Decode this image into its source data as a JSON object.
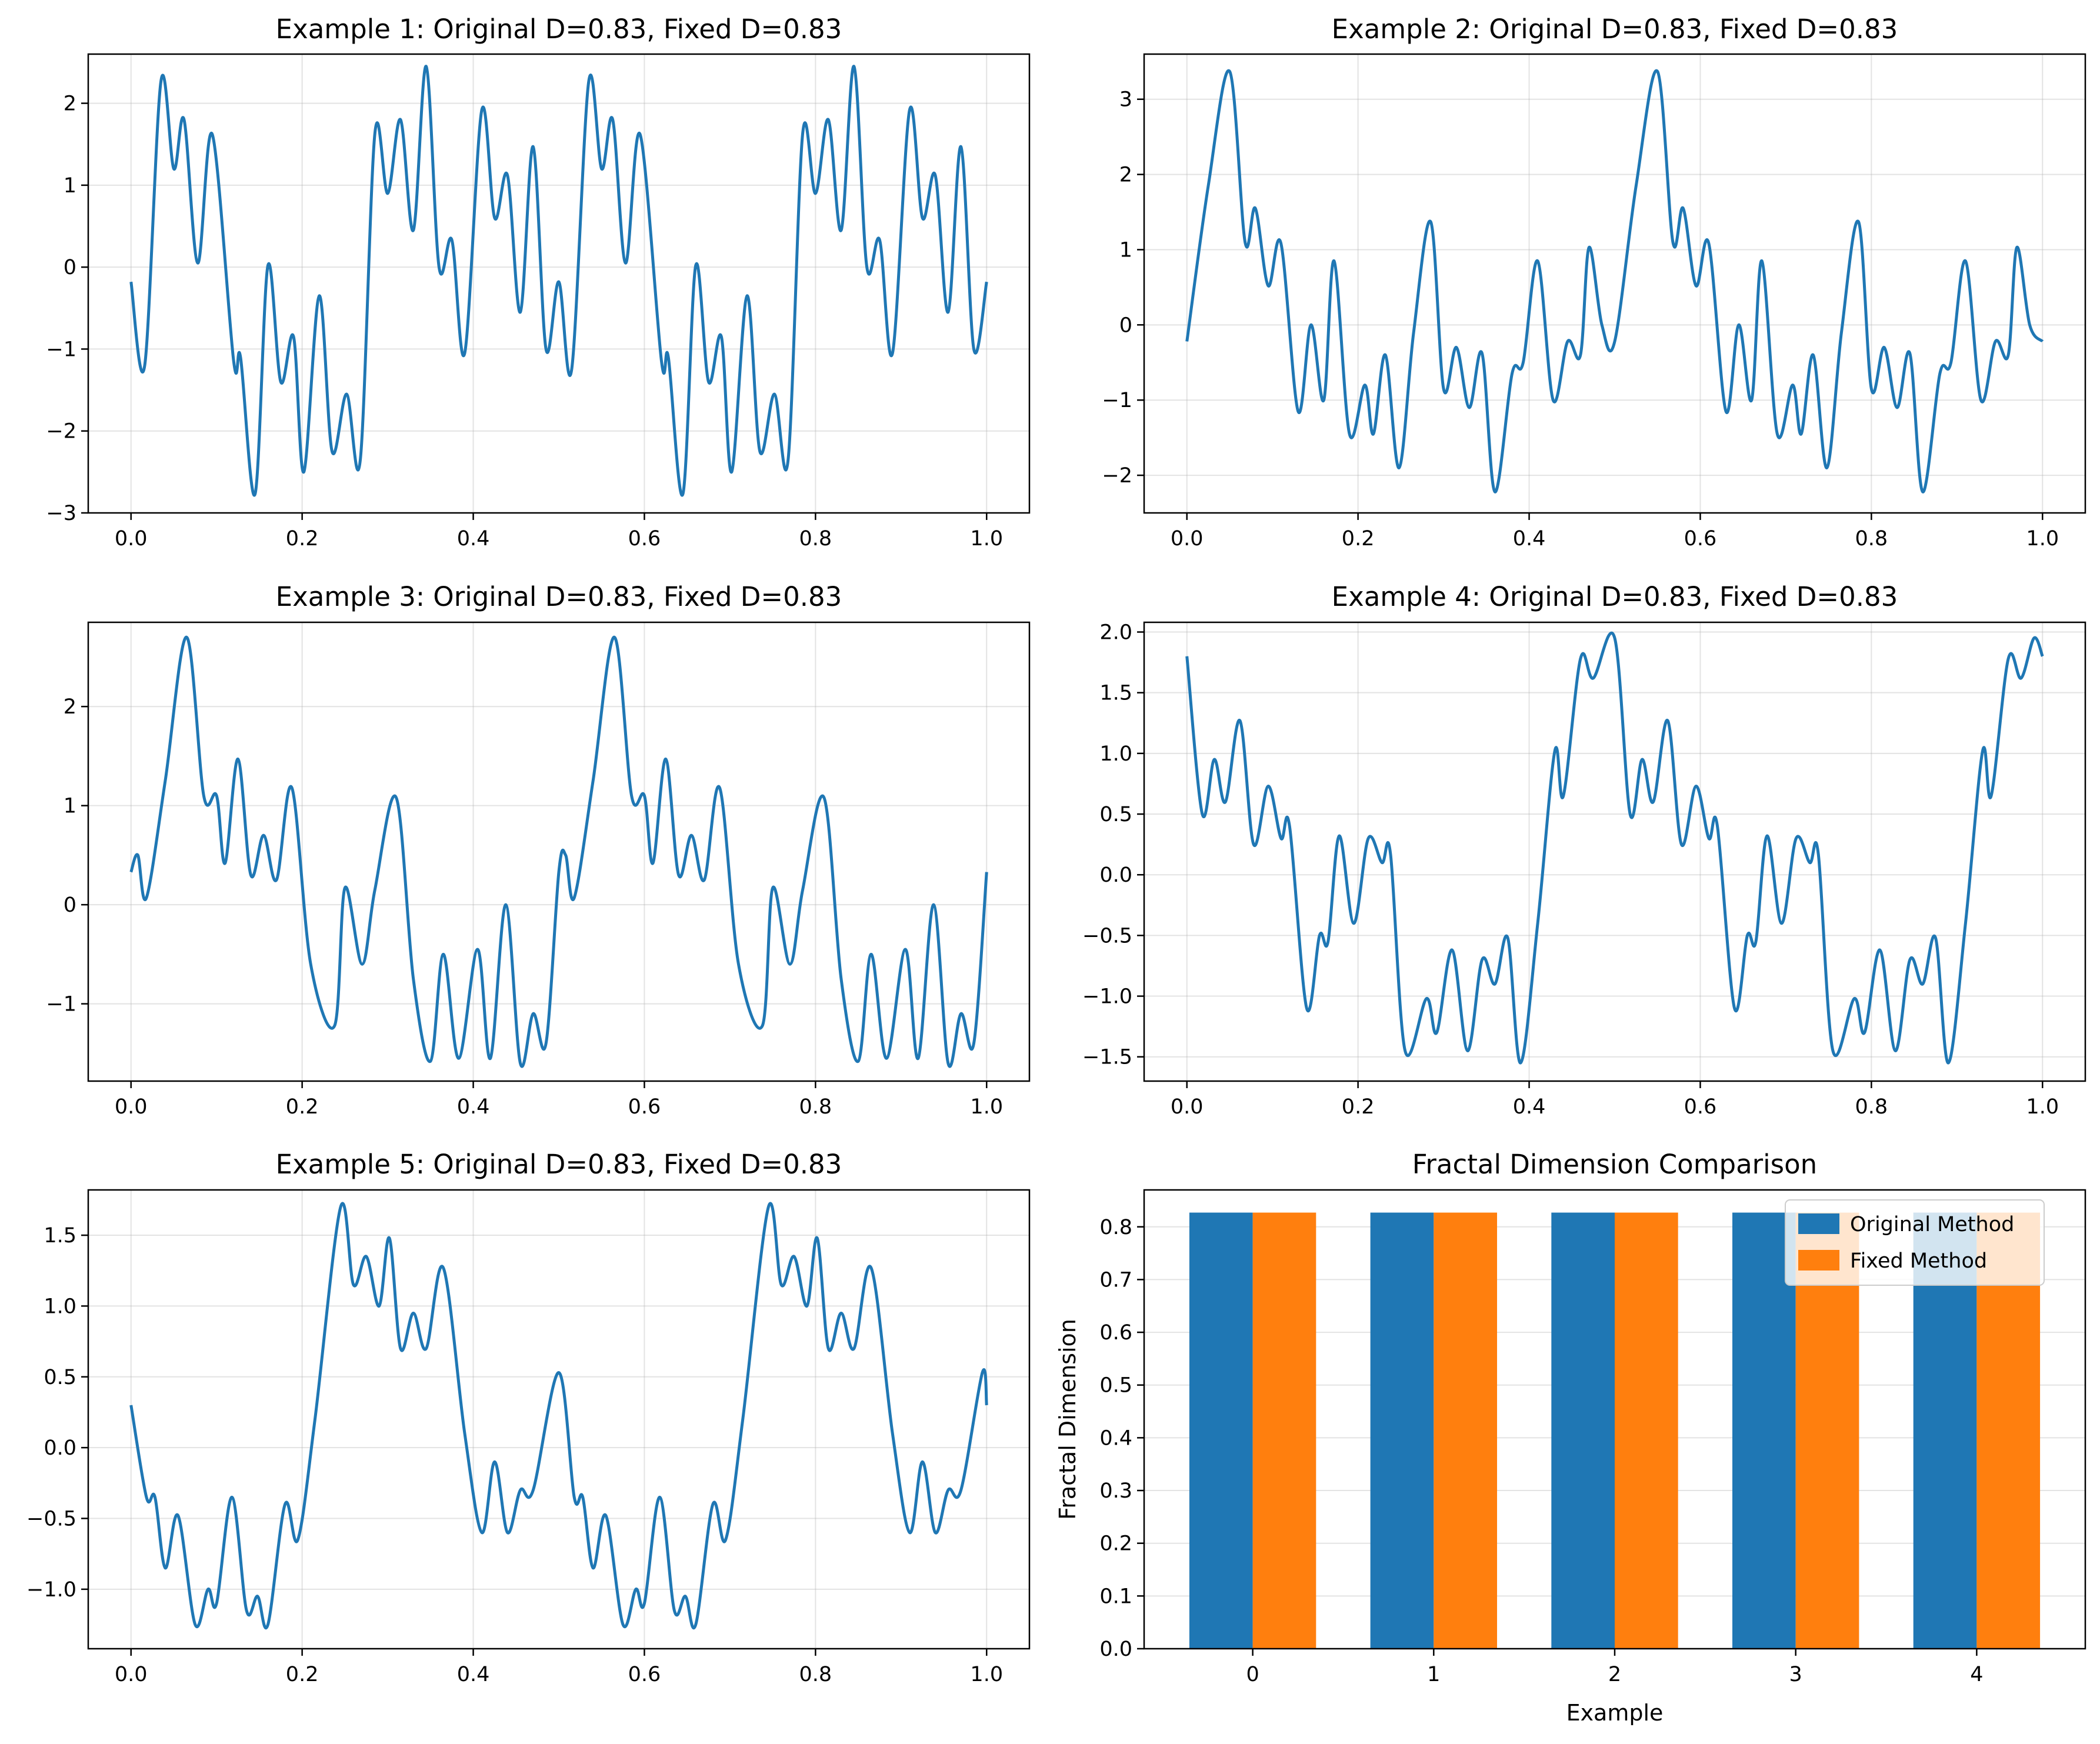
{
  "colors": {
    "line": "#1f77b4",
    "original": "#1f77b4",
    "fixed": "#ff7f0e",
    "grid": "#b0b0b0"
  },
  "chart_data": [
    {
      "type": "line",
      "title": "Example 1: Original D=0.83, Fixed D=0.83",
      "xlim": [
        -0.05,
        1.05
      ],
      "ylim": [
        -3.0,
        2.6
      ],
      "xticks": [
        "0.0",
        "0.2",
        "0.4",
        "0.6",
        "0.8",
        "1.0"
      ],
      "yticks": [
        "−3",
        "−2",
        "−1",
        "0",
        "1",
        "2"
      ],
      "grid": true,
      "series": [
        {
          "x": [
            0.0,
            0.016,
            0.035,
            0.05,
            0.062,
            0.078,
            0.095,
            0.12,
            0.128,
            0.145,
            0.16,
            0.175,
            0.19,
            0.202,
            0.22,
            0.235,
            0.252,
            0.268,
            0.285,
            0.3,
            0.315,
            0.33,
            0.345,
            0.36,
            0.375,
            0.39,
            0.41,
            0.425,
            0.44,
            0.455,
            0.47,
            0.485,
            0.5,
            0.515,
            0.535,
            0.55,
            0.563,
            0.578,
            0.595,
            0.62,
            0.628,
            0.645,
            0.66,
            0.675,
            0.69,
            0.702,
            0.72,
            0.735,
            0.752,
            0.768,
            0.785,
            0.8,
            0.815,
            0.83,
            0.845,
            0.86,
            0.875,
            0.89,
            0.91,
            0.925,
            0.94,
            0.955,
            0.97,
            0.985,
            1.0
          ],
          "y": [
            -0.18,
            -1.2,
            2.27,
            1.2,
            1.8,
            0.05,
            1.62,
            -1.15,
            -1.1,
            -2.77,
            0.02,
            -1.4,
            -0.85,
            -2.5,
            -0.35,
            -2.25,
            -1.55,
            -2.35,
            1.63,
            0.9,
            1.8,
            0.45,
            2.45,
            0.0,
            0.33,
            -1.05,
            1.92,
            0.6,
            1.12,
            -0.55,
            1.47,
            -1.0,
            -0.18,
            -1.25,
            2.27,
            1.2,
            1.8,
            0.05,
            1.62,
            -1.15,
            -1.1,
            -2.77,
            0.02,
            -1.4,
            -0.85,
            -2.5,
            -0.35,
            -2.25,
            -1.55,
            -2.35,
            1.63,
            0.9,
            1.8,
            0.45,
            2.45,
            0.0,
            0.33,
            -1.05,
            1.92,
            0.6,
            1.12,
            -0.55,
            1.47,
            -1.0,
            -0.18
          ]
        }
      ]
    },
    {
      "type": "line",
      "title": "Example 2: Original D=0.83, Fixed D=0.83",
      "xlim": [
        -0.05,
        1.05
      ],
      "ylim": [
        -2.5,
        3.6
      ],
      "xticks": [
        "0.0",
        "0.2",
        "0.4",
        "0.6",
        "0.8",
        "1.0"
      ],
      "yticks": [
        "−2",
        "−1",
        "0",
        "1",
        "2",
        "3"
      ],
      "grid": true,
      "series": [
        {
          "x": [
            0.0,
            0.025,
            0.05,
            0.068,
            0.08,
            0.095,
            0.11,
            0.13,
            0.145,
            0.16,
            0.172,
            0.19,
            0.208,
            0.218,
            0.232,
            0.248,
            0.265,
            0.285,
            0.3,
            0.315,
            0.33,
            0.345,
            0.36,
            0.38,
            0.393,
            0.41,
            0.428,
            0.445,
            0.46,
            0.47,
            0.485,
            0.5,
            0.525,
            0.55,
            0.568,
            0.58,
            0.595,
            0.61,
            0.63,
            0.645,
            0.66,
            0.672,
            0.69,
            0.708,
            0.718,
            0.732,
            0.748,
            0.765,
            0.785,
            0.8,
            0.815,
            0.83,
            0.845,
            0.86,
            0.88,
            0.893,
            0.91,
            0.928,
            0.945,
            0.96,
            0.97,
            0.985,
            1.0
          ],
          "y": [
            -0.22,
            1.85,
            3.37,
            1.1,
            1.55,
            0.52,
            1.08,
            -1.15,
            0.0,
            -1.0,
            0.85,
            -1.45,
            -0.8,
            -1.45,
            -0.4,
            -1.9,
            -0.1,
            1.37,
            -0.85,
            -0.3,
            -1.1,
            -0.38,
            -2.22,
            -0.65,
            -0.5,
            0.85,
            -1.0,
            -0.22,
            -0.4,
            1.03,
            0.0,
            -0.22,
            1.85,
            3.37,
            1.1,
            1.55,
            0.52,
            1.08,
            -1.15,
            0.0,
            -1.0,
            0.85,
            -1.45,
            -0.8,
            -1.45,
            -0.4,
            -1.9,
            -0.1,
            1.37,
            -0.85,
            -0.3,
            -1.1,
            -0.38,
            -2.22,
            -0.65,
            -0.5,
            0.85,
            -1.0,
            -0.22,
            -0.4,
            1.03,
            0.0,
            -0.22
          ]
        }
      ]
    },
    {
      "type": "line",
      "title": "Example 3: Original D=0.83, Fixed D=0.83",
      "xlim": [
        -0.05,
        1.05
      ],
      "ylim": [
        -1.78,
        2.85
      ],
      "xticks": [
        "0.0",
        "0.2",
        "0.4",
        "0.6",
        "0.8",
        "1.0"
      ],
      "yticks": [
        "−1",
        "0",
        "1",
        "2"
      ],
      "grid": true,
      "series": [
        {
          "x": [
            0.0,
            0.008,
            0.018,
            0.04,
            0.065,
            0.085,
            0.1,
            0.11,
            0.125,
            0.14,
            0.155,
            0.17,
            0.188,
            0.21,
            0.238,
            0.25,
            0.27,
            0.285,
            0.31,
            0.33,
            0.35,
            0.365,
            0.383,
            0.405,
            0.42,
            0.438,
            0.455,
            0.47,
            0.485,
            0.5,
            0.508,
            0.518,
            0.54,
            0.565,
            0.585,
            0.6,
            0.61,
            0.625,
            0.64,
            0.655,
            0.67,
            0.688,
            0.71,
            0.738,
            0.75,
            0.77,
            0.785,
            0.81,
            0.83,
            0.85,
            0.865,
            0.883,
            0.905,
            0.92,
            0.938,
            0.955,
            0.97,
            0.985,
            1.0
          ],
          "y": [
            0.33,
            0.5,
            0.07,
            1.25,
            2.7,
            1.1,
            1.1,
            0.42,
            1.47,
            0.3,
            0.7,
            0.25,
            1.18,
            -0.6,
            -1.22,
            0.17,
            -0.6,
            0.15,
            1.08,
            -0.75,
            -1.58,
            -0.5,
            -1.55,
            -0.45,
            -1.55,
            0.0,
            -1.6,
            -1.1,
            -1.4,
            0.33,
            0.5,
            0.07,
            1.25,
            2.7,
            1.1,
            1.1,
            0.42,
            1.47,
            0.3,
            0.7,
            0.25,
            1.18,
            -0.6,
            -1.22,
            0.17,
            -0.6,
            0.15,
            1.08,
            -0.75,
            -1.58,
            -0.5,
            -1.55,
            -0.45,
            -1.55,
            0.0,
            -1.6,
            -1.1,
            -1.4,
            0.33
          ]
        }
      ]
    },
    {
      "type": "line",
      "title": "Example 4: Original D=0.83, Fixed D=0.83",
      "xlim": [
        -0.05,
        1.05
      ],
      "ylim": [
        -1.7,
        2.08
      ],
      "xticks": [
        "0.0",
        "0.2",
        "0.4",
        "0.6",
        "0.8",
        "1.0"
      ],
      "yticks": [
        "−1.5",
        "−1.0",
        "−0.5",
        "0.0",
        "0.5",
        "1.0",
        "1.5",
        "2.0"
      ],
      "grid": true,
      "series": [
        {
          "x": [
            0.0,
            0.018,
            0.032,
            0.045,
            0.062,
            0.078,
            0.095,
            0.11,
            0.12,
            0.14,
            0.155,
            0.165,
            0.178,
            0.195,
            0.212,
            0.228,
            0.238,
            0.255,
            0.28,
            0.292,
            0.31,
            0.328,
            0.345,
            0.36,
            0.375,
            0.39,
            0.41,
            0.43,
            0.44,
            0.46,
            0.475,
            0.5,
            0.518,
            0.532,
            0.545,
            0.562,
            0.578,
            0.595,
            0.61,
            0.62,
            0.64,
            0.655,
            0.665,
            0.678,
            0.695,
            0.712,
            0.728,
            0.738,
            0.755,
            0.78,
            0.792,
            0.81,
            0.828,
            0.845,
            0.86,
            0.875,
            0.89,
            0.91,
            0.93,
            0.94,
            0.96,
            0.975,
            0.99,
            1.0
          ],
          "y": [
            1.8,
            0.5,
            0.95,
            0.6,
            1.27,
            0.25,
            0.73,
            0.3,
            0.4,
            -1.1,
            -0.5,
            -0.55,
            0.32,
            -0.4,
            0.3,
            0.1,
            0.17,
            -1.45,
            -1.02,
            -1.3,
            -0.62,
            -1.45,
            -0.7,
            -0.9,
            -0.52,
            -1.55,
            -0.4,
            1.02,
            0.65,
            1.78,
            1.62,
            1.95,
            0.5,
            0.95,
            0.6,
            1.27,
            0.25,
            0.73,
            0.3,
            0.4,
            -1.1,
            -0.5,
            -0.55,
            0.32,
            -0.4,
            0.3,
            0.1,
            0.17,
            -1.45,
            -1.02,
            -1.3,
            -0.62,
            -1.45,
            -0.7,
            -0.9,
            -0.52,
            -1.55,
            -0.4,
            1.02,
            0.65,
            1.78,
            1.62,
            1.95,
            1.8
          ]
        }
      ]
    },
    {
      "type": "line",
      "title": "Example 5: Original D=0.83, Fixed D=0.83",
      "xlim": [
        -0.05,
        1.05
      ],
      "ylim": [
        -1.42,
        1.82
      ],
      "xticks": [
        "0.0",
        "0.2",
        "0.4",
        "0.6",
        "0.8",
        "1.0"
      ],
      "yticks": [
        "−1.0",
        "−0.5",
        "0.0",
        "0.5",
        "1.0",
        "1.5"
      ],
      "grid": true,
      "series": [
        {
          "x": [
            0.0,
            0.018,
            0.028,
            0.04,
            0.055,
            0.075,
            0.09,
            0.1,
            0.118,
            0.135,
            0.148,
            0.16,
            0.18,
            0.195,
            0.215,
            0.245,
            0.26,
            0.275,
            0.29,
            0.302,
            0.315,
            0.33,
            0.345,
            0.365,
            0.39,
            0.41,
            0.425,
            0.44,
            0.455,
            0.47,
            0.5,
            0.518,
            0.528,
            0.54,
            0.555,
            0.575,
            0.59,
            0.6,
            0.618,
            0.635,
            0.648,
            0.66,
            0.68,
            0.695,
            0.715,
            0.745,
            0.76,
            0.775,
            0.79,
            0.802,
            0.815,
            0.83,
            0.845,
            0.865,
            0.89,
            0.91,
            0.925,
            0.94,
            0.955,
            0.97,
            0.995,
            1.0
          ],
          "y": [
            0.3,
            -0.35,
            -0.35,
            -0.85,
            -0.48,
            -1.25,
            -1.0,
            -1.1,
            -0.35,
            -1.15,
            -1.05,
            -1.25,
            -0.4,
            -0.65,
            0.2,
            1.7,
            1.15,
            1.35,
            1.0,
            1.48,
            0.7,
            0.95,
            0.7,
            1.27,
            0.1,
            -0.6,
            -0.1,
            -0.6,
            -0.3,
            -0.3,
            0.53,
            -0.35,
            -0.35,
            -0.85,
            -0.48,
            -1.25,
            -1.0,
            -1.1,
            -0.35,
            -1.15,
            -1.05,
            -1.25,
            -0.4,
            -0.65,
            0.2,
            1.7,
            1.15,
            1.35,
            1.0,
            1.48,
            0.7,
            0.95,
            0.7,
            1.27,
            0.1,
            -0.6,
            -0.1,
            -0.6,
            -0.3,
            -0.3,
            0.53,
            0.3
          ]
        }
      ]
    },
    {
      "type": "bar",
      "title": "Fractal Dimension Comparison",
      "xlabel": "Example",
      "ylabel": "Fractal Dimension",
      "categories": [
        "0",
        "1",
        "2",
        "3",
        "4"
      ],
      "ylim": [
        0.0,
        0.87
      ],
      "yticks": [
        "0.0",
        "0.1",
        "0.2",
        "0.3",
        "0.4",
        "0.5",
        "0.6",
        "0.7",
        "0.8"
      ],
      "grid": true,
      "legend": "top-right",
      "series": [
        {
          "name": "Original Method",
          "values": [
            0.827,
            0.827,
            0.827,
            0.827,
            0.827
          ]
        },
        {
          "name": "Fixed Method",
          "values": [
            0.827,
            0.827,
            0.827,
            0.827,
            0.827
          ]
        }
      ]
    }
  ]
}
